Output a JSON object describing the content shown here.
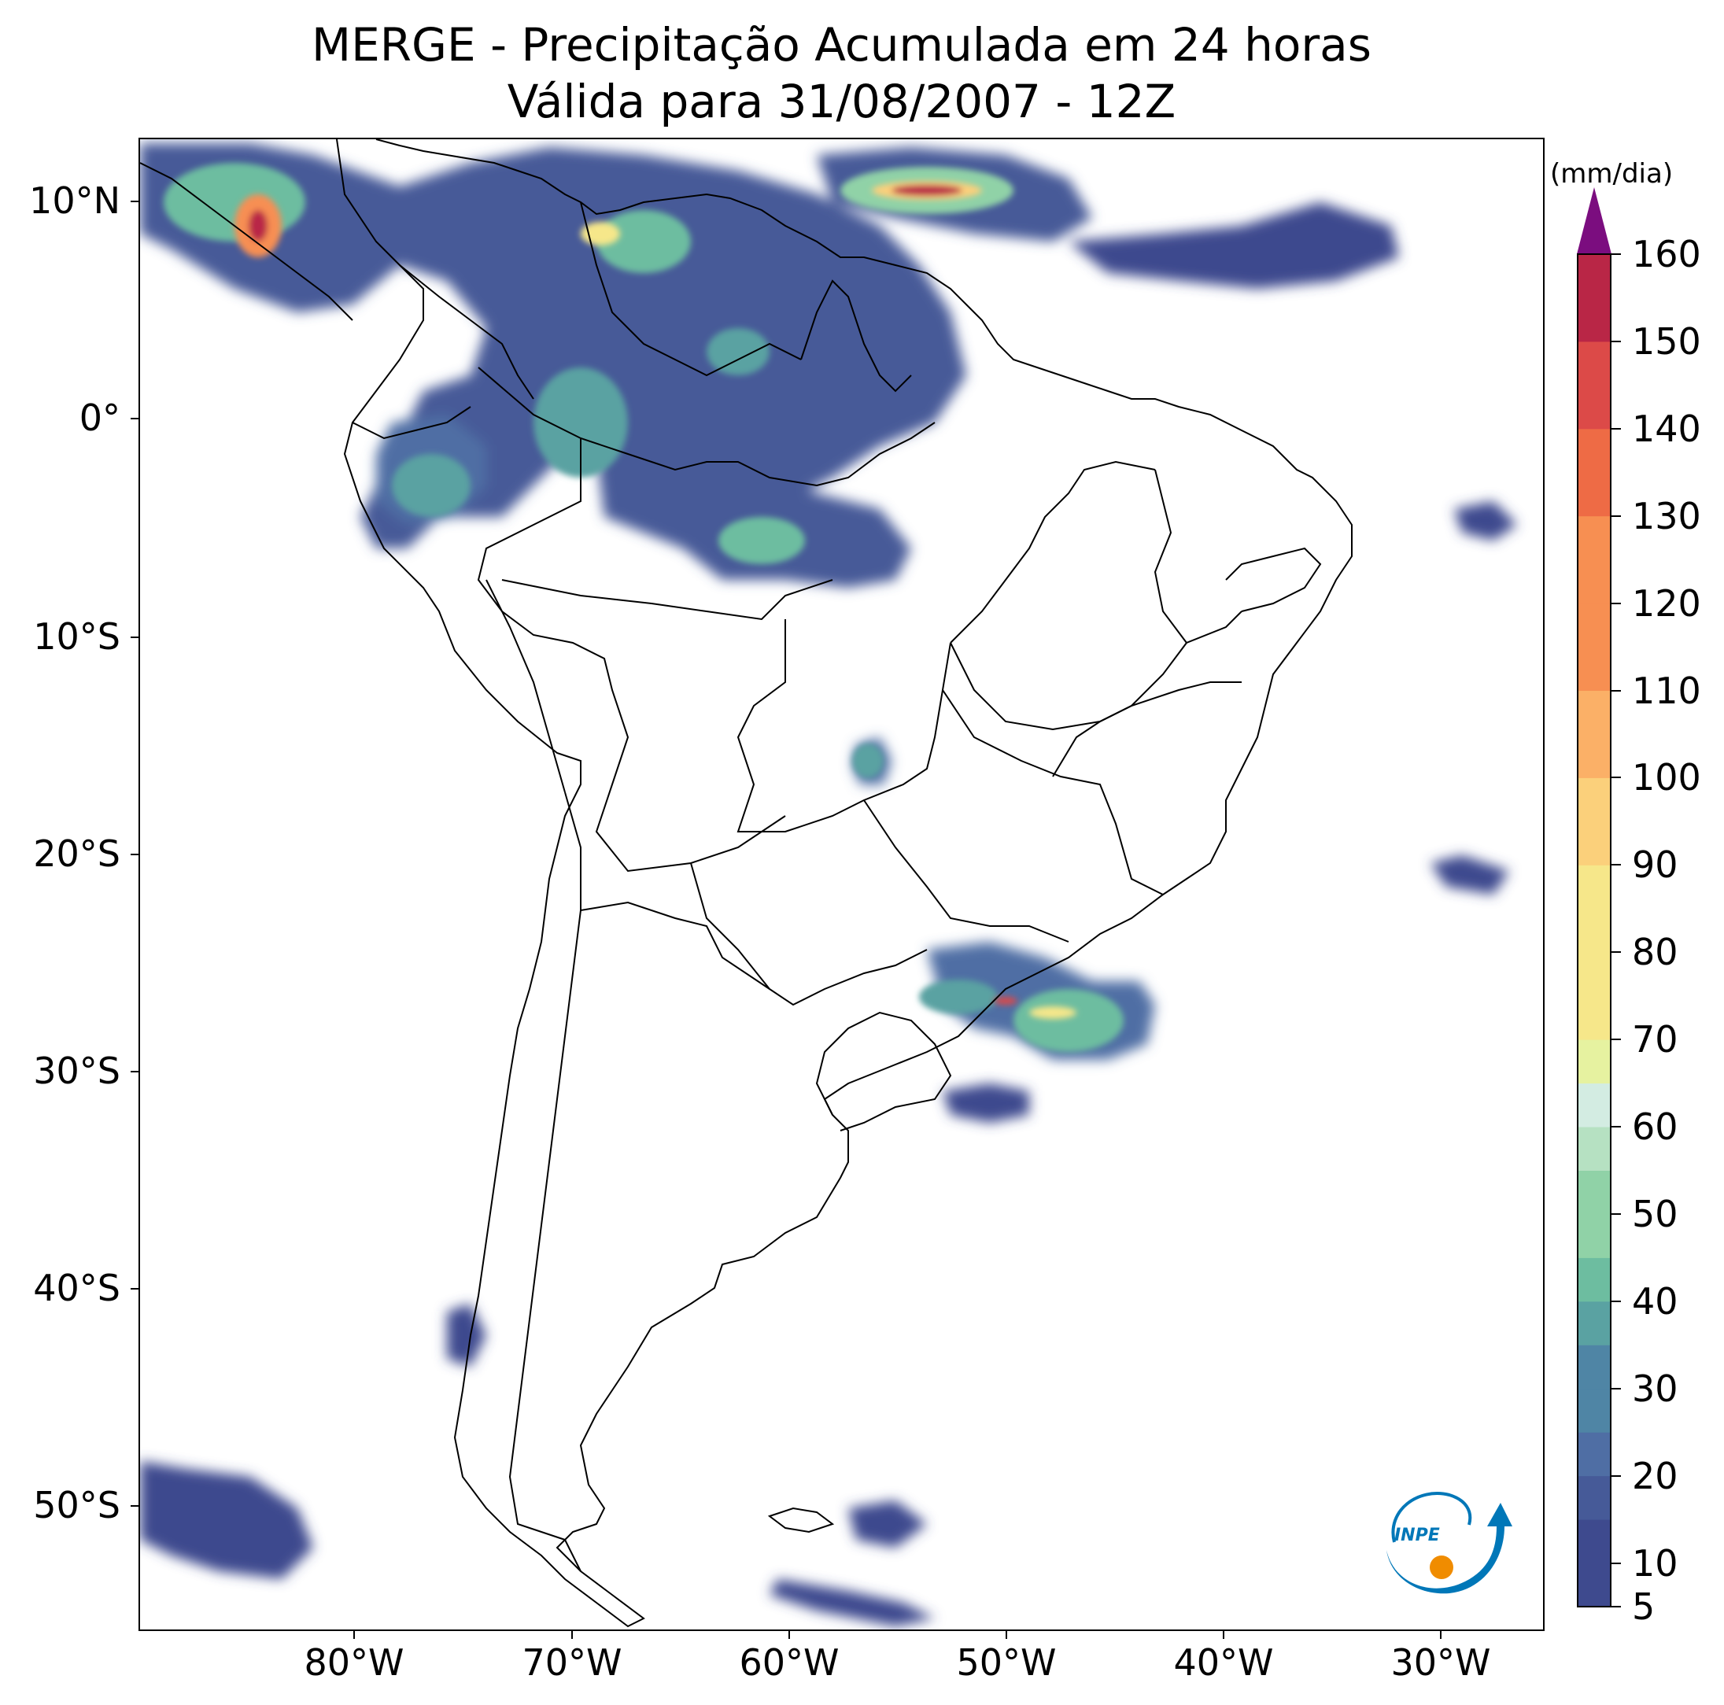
{
  "title": {
    "line1": "MERGE - Precipitação Acumulada em 24 horas",
    "line2": "Válida para 31/08/2007 - 12Z"
  },
  "map": {
    "region": "South America",
    "lon_range": [
      -90,
      -25
    ],
    "lat_range": [
      -56,
      13
    ],
    "lat_labels": [
      "10°N",
      "0°",
      "10°S",
      "20°S",
      "30°S",
      "40°S",
      "50°S"
    ],
    "lon_labels": [
      "80°W",
      "70°W",
      "60°W",
      "50°W",
      "40°W",
      "30°W"
    ]
  },
  "colorbar": {
    "unit": "(mm/dia)",
    "labels": [
      "5",
      "10",
      "20",
      "30",
      "40",
      "50",
      "60",
      "70",
      "80",
      "90",
      "100",
      "110",
      "120",
      "130",
      "140",
      "150",
      "160"
    ],
    "extend": "max",
    "colors": [
      "#3e4a8e",
      "#465a98",
      "#4f6ea4",
      "#4f85a5",
      "#5aa2a2",
      "#6dbda0",
      "#90d2a7",
      "#b6e1c2",
      "#d3ece2",
      "#e6f2a0",
      "#f6e78a",
      "#fbd07b",
      "#fbb067",
      "#f78f52",
      "#ee6b45",
      "#dc4a48",
      "#b92646",
      "#7b0d7f"
    ]
  },
  "logo": {
    "text": "INPE"
  }
}
